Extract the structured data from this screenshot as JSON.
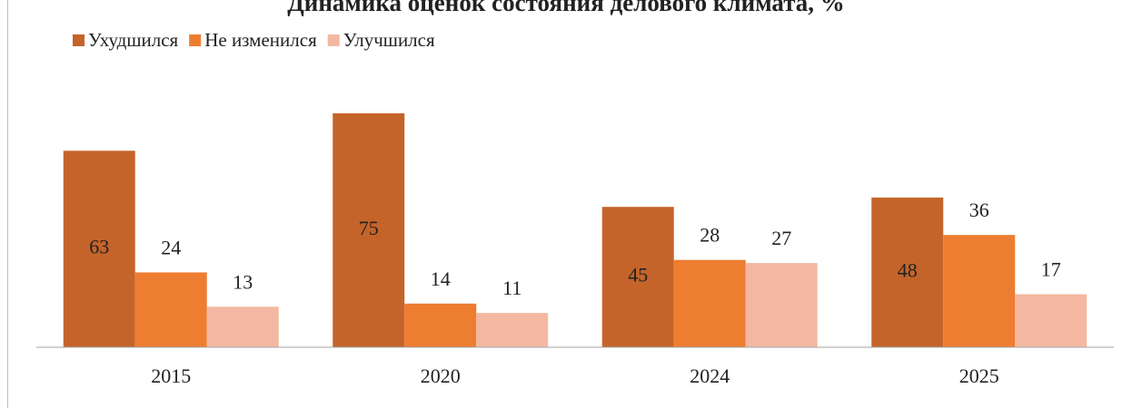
{
  "chart_data": {
    "type": "bar",
    "title": "Динамика оценок состояния делового климата, %",
    "categories": [
      "2015",
      "2020",
      "2024",
      "2025"
    ],
    "series": [
      {
        "name": "Ухудшился",
        "color": "#c4642a",
        "values": [
          63,
          75,
          45,
          48
        ]
      },
      {
        "name": "Не изменился",
        "color": "#ed7d31",
        "values": [
          24,
          14,
          28,
          36
        ]
      },
      {
        "name": "Улучшился",
        "color": "#f4b8a2",
        "values": [
          13,
          11,
          27,
          17
        ]
      }
    ],
    "ylim": [
      0,
      100
    ],
    "legend": "top-left"
  }
}
